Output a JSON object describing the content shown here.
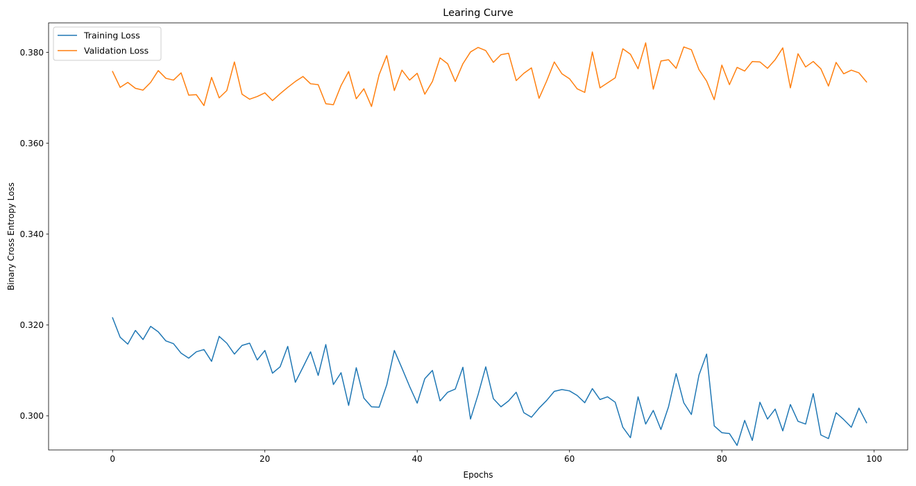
{
  "chart_data": {
    "type": "line",
    "title": "Learing Curve",
    "xlabel": "Epochs",
    "ylabel": "Binary Cross Entropy Loss",
    "xlim": [
      -8.4,
      104.4
    ],
    "ylim": [
      0.2925,
      0.3865
    ],
    "xticks": [
      0,
      20,
      40,
      60,
      80,
      100
    ],
    "yticks": [
      0.3,
      0.32,
      0.34,
      0.36,
      0.38
    ],
    "ytick_labels": [
      "0.300",
      "0.320",
      "0.340",
      "0.360",
      "0.380"
    ],
    "grid": false,
    "legend_position": "top-left",
    "series": [
      {
        "name": "Training Loss",
        "color": "#1f77b4",
        "values": [
          0.3216,
          0.3173,
          0.3158,
          0.3188,
          0.3168,
          0.3197,
          0.3185,
          0.3165,
          0.3159,
          0.3138,
          0.3127,
          0.3141,
          0.3146,
          0.312,
          0.3175,
          0.316,
          0.3136,
          0.3155,
          0.316,
          0.3123,
          0.3144,
          0.3094,
          0.3108,
          0.3153,
          0.3074,
          0.3107,
          0.3141,
          0.3089,
          0.3157,
          0.3069,
          0.3095,
          0.3023,
          0.3106,
          0.3039,
          0.302,
          0.3019,
          0.3068,
          0.3144,
          0.3105,
          0.3065,
          0.3028,
          0.3082,
          0.31,
          0.3033,
          0.3052,
          0.3059,
          0.3107,
          0.2993,
          0.3047,
          0.3108,
          0.3038,
          0.302,
          0.3033,
          0.3052,
          0.3007,
          0.2997,
          0.3017,
          0.3034,
          0.3054,
          0.3058,
          0.3055,
          0.3045,
          0.3029,
          0.306,
          0.3036,
          0.3042,
          0.303,
          0.2975,
          0.2952,
          0.3042,
          0.2982,
          0.3012,
          0.297,
          0.302,
          0.3093,
          0.3029,
          0.3003,
          0.309,
          0.3136,
          0.2978,
          0.2963,
          0.2961,
          0.2935,
          0.299,
          0.2946,
          0.303,
          0.2993,
          0.3015,
          0.2967,
          0.3025,
          0.2988,
          0.2982,
          0.3049,
          0.2958,
          0.295,
          0.3007,
          0.2992,
          0.2975,
          0.3017,
          0.2985
        ]
      },
      {
        "name": "Validation Loss",
        "color": "#ff7f0e",
        "values": [
          0.3758,
          0.3723,
          0.3734,
          0.3721,
          0.3717,
          0.3734,
          0.376,
          0.3743,
          0.3739,
          0.3755,
          0.3706,
          0.3707,
          0.3683,
          0.3745,
          0.37,
          0.3716,
          0.3779,
          0.3708,
          0.3697,
          0.3703,
          0.3711,
          0.3694,
          0.3709,
          0.3723,
          0.3736,
          0.3747,
          0.3731,
          0.3729,
          0.3687,
          0.3685,
          0.3727,
          0.3758,
          0.3698,
          0.372,
          0.3681,
          0.3751,
          0.3793,
          0.3716,
          0.3761,
          0.3739,
          0.3754,
          0.3708,
          0.3736,
          0.3788,
          0.3775,
          0.3736,
          0.3775,
          0.3801,
          0.3811,
          0.3804,
          0.3778,
          0.3795,
          0.3798,
          0.3738,
          0.3754,
          0.3766,
          0.3699,
          0.3737,
          0.3779,
          0.3753,
          0.3742,
          0.372,
          0.3712,
          0.3801,
          0.3722,
          0.3733,
          0.3744,
          0.3808,
          0.3796,
          0.3764,
          0.3821,
          0.3719,
          0.3781,
          0.3784,
          0.3765,
          0.3812,
          0.3806,
          0.3762,
          0.3737,
          0.3696,
          0.3772,
          0.3729,
          0.3767,
          0.3759,
          0.378,
          0.3779,
          0.3765,
          0.3784,
          0.381,
          0.3722,
          0.3797,
          0.3768,
          0.378,
          0.3764,
          0.3726,
          0.3778,
          0.3753,
          0.3761,
          0.3755,
          0.3735
        ]
      }
    ]
  }
}
